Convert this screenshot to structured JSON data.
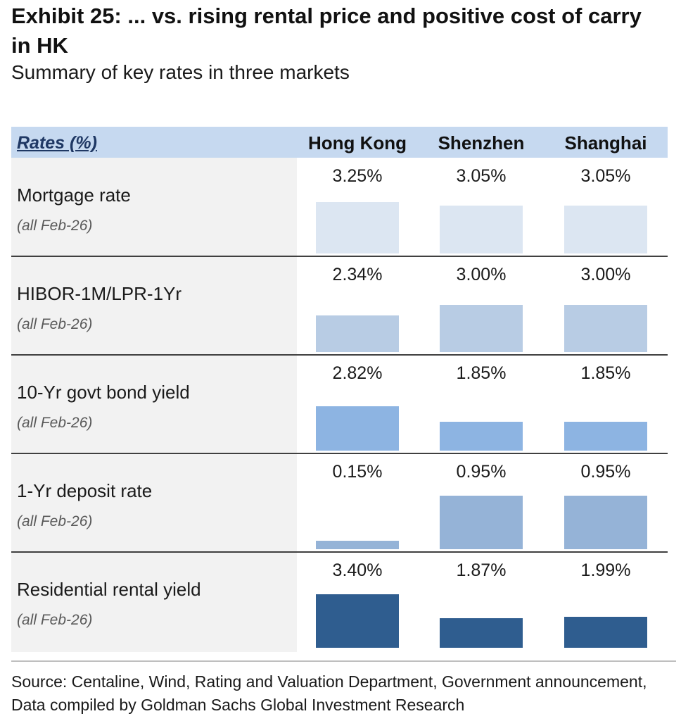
{
  "title": "Exhibit 25: ... vs. rising rental price and positive cost of carry in HK",
  "subtitle": "Summary of key rates in three markets",
  "source": "Source: Centaline, Wind, Rating and Valuation Department, Government announcement, Data compiled by Goldman Sachs Global Investment Research",
  "chart_data": {
    "type": "table",
    "header_label": "Rates (%)",
    "columns": [
      "Hong Kong",
      "Shenzhen",
      "Shanghai"
    ],
    "rows": [
      {
        "label": "Mortgage rate",
        "sublabel": "(all Feb-26)",
        "values": [
          3.25,
          3.05,
          3.05
        ],
        "display": [
          "3.25%",
          "3.05%",
          "3.05%"
        ],
        "bar_scale_max": 3.4,
        "color": "#dce6f2"
      },
      {
        "label": "HIBOR-1M/LPR-1Yr",
        "sublabel": "(all Feb-26)",
        "values": [
          2.34,
          3.0,
          3.0
        ],
        "display": [
          "2.34%",
          "3.00%",
          "3.00%"
        ],
        "bar_scale_max": 3.4,
        "color": "#b8cce4"
      },
      {
        "label": "10-Yr govt bond yield",
        "sublabel": "(all Feb-26)",
        "values": [
          2.82,
          1.85,
          1.85
        ],
        "display": [
          "2.82%",
          "1.85%",
          "1.85%"
        ],
        "bar_scale_max": 3.4,
        "color": "#8db4e2"
      },
      {
        "label": "1-Yr deposit rate",
        "sublabel": "(all Feb-26)",
        "values": [
          0.15,
          0.95,
          0.95
        ],
        "display": [
          "0.15%",
          "0.95%",
          "0.95%"
        ],
        "bar_scale_max": 0.95,
        "color": "#95b3d7"
      },
      {
        "label": "Residential rental yield",
        "sublabel": "(all Feb-26)",
        "values": [
          3.4,
          1.87,
          1.99
        ],
        "display": [
          "3.40%",
          "1.87%",
          "1.99%"
        ],
        "bar_scale_max": 3.4,
        "color": "#2f5d8f"
      }
    ]
  }
}
